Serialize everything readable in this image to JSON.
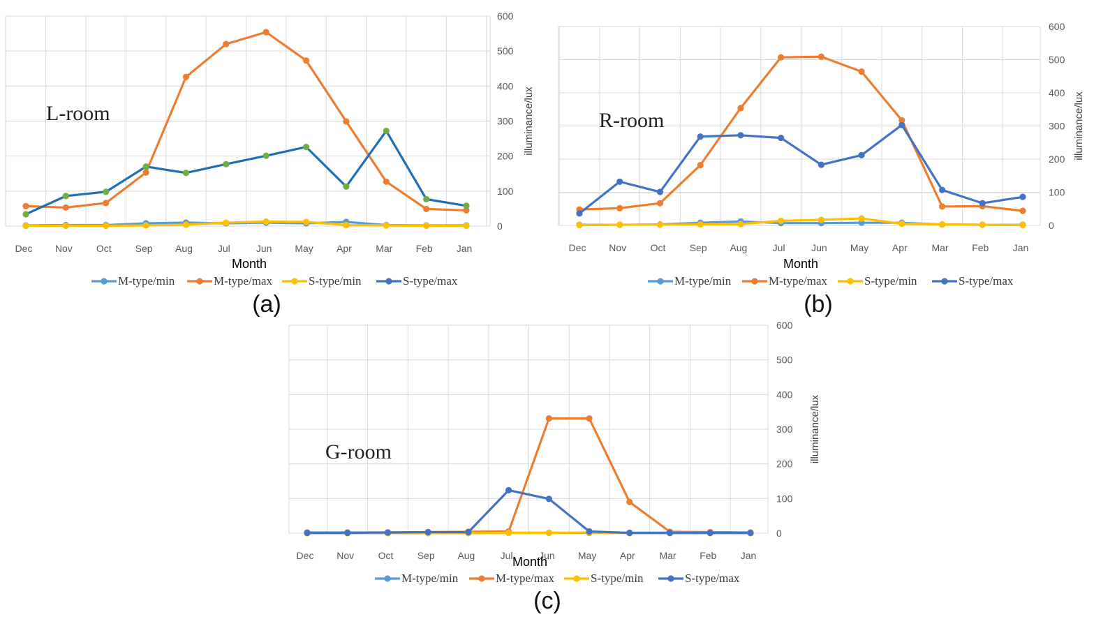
{
  "chart_data": [
    {
      "type": "line",
      "panel_label": "(a)",
      "room_label": "L-room",
      "xlabel": "Month",
      "ylabel": "illuminance/lux",
      "categories": [
        "Dec",
        "Nov",
        "Oct",
        "Sep",
        "Aug",
        "Jul",
        "Jun",
        "May",
        "Apr",
        "Mar",
        "Feb",
        "Jan"
      ],
      "ylim": [
        0,
        600
      ],
      "yticks": [
        0,
        100,
        200,
        300,
        400,
        500,
        600
      ],
      "grid": true,
      "series": [
        {
          "name": "M-type/min",
          "color": "#5B9BD5",
          "values": [
            2,
            3,
            3,
            8,
            10,
            8,
            10,
            8,
            12,
            3,
            2,
            2
          ]
        },
        {
          "name": "M-type/max",
          "color": "#ED7D31",
          "values": [
            57,
            53,
            66,
            153,
            426,
            520,
            554,
            473,
            299,
            127,
            49,
            45
          ]
        },
        {
          "name": "S-type/min",
          "color": "#FFC000",
          "values": [
            1,
            1,
            1,
            2,
            4,
            10,
            13,
            12,
            3,
            2,
            1,
            1
          ]
        },
        {
          "name": "S-type/max",
          "color": "#4472C4",
          "line_color": "#1F6FB5",
          "marker_color": "#70AD47",
          "values": [
            34,
            86,
            98,
            170,
            152,
            177,
            201,
            226,
            113,
            272,
            77,
            58
          ]
        }
      ]
    },
    {
      "type": "line",
      "panel_label": "(b)",
      "room_label": "R-room",
      "xlabel": "Month",
      "ylabel": "illuminance/lux",
      "categories": [
        "Dec",
        "Nov",
        "Oct",
        "Sep",
        "Aug",
        "Jul",
        "Jun",
        "May",
        "Apr",
        "Mar",
        "Feb",
        "Jan"
      ],
      "ylim": [
        0,
        600
      ],
      "yticks": [
        0,
        100,
        200,
        300,
        400,
        500,
        600
      ],
      "grid": true,
      "series": [
        {
          "name": "M-type/min",
          "color": "#5B9BD5",
          "values": [
            2,
            2,
            3,
            8,
            12,
            7,
            7,
            8,
            8,
            3,
            2,
            2
          ]
        },
        {
          "name": "M-type/max",
          "color": "#ED7D31",
          "values": [
            48,
            52,
            67,
            182,
            354,
            507,
            509,
            464,
            317,
            57,
            58,
            44
          ]
        },
        {
          "name": "S-type/min",
          "color": "#FFC000",
          "values": [
            1,
            2,
            2,
            3,
            4,
            14,
            17,
            21,
            5,
            3,
            2,
            1
          ]
        },
        {
          "name": "S-type/max",
          "color": "#4472C4",
          "values": [
            36,
            132,
            101,
            268,
            272,
            264,
            183,
            212,
            303,
            107,
            67,
            86
          ]
        }
      ]
    },
    {
      "type": "line",
      "panel_label": "(c)",
      "room_label": "G-room",
      "xlabel": "Month",
      "ylabel": "illuminance/lux",
      "categories": [
        "Dec",
        "Nov",
        "Oct",
        "Sep",
        "Aug",
        "Jul",
        "Jun",
        "May",
        "Apr",
        "Mar",
        "Feb",
        "Jan"
      ],
      "ylim": [
        0,
        600
      ],
      "yticks": [
        0,
        100,
        200,
        300,
        400,
        500,
        600
      ],
      "grid": true,
      "series": [
        {
          "name": "M-type/min",
          "color": "#5B9BD5",
          "values": [
            1,
            1,
            1,
            2,
            3,
            1,
            1,
            1,
            1,
            1,
            1,
            1
          ]
        },
        {
          "name": "M-type/max",
          "color": "#ED7D31",
          "values": [
            2,
            2,
            2,
            3,
            4,
            5,
            331,
            331,
            90,
            4,
            3,
            2
          ]
        },
        {
          "name": "S-type/min",
          "color": "#FFC000",
          "values": [
            0,
            0,
            0,
            0,
            0,
            1,
            1,
            2,
            0,
            0,
            0,
            0
          ]
        },
        {
          "name": "S-type/max",
          "color": "#4472C4",
          "values": [
            1,
            1,
            2,
            3,
            3,
            124,
            99,
            5,
            1,
            1,
            1,
            1
          ]
        }
      ]
    }
  ]
}
